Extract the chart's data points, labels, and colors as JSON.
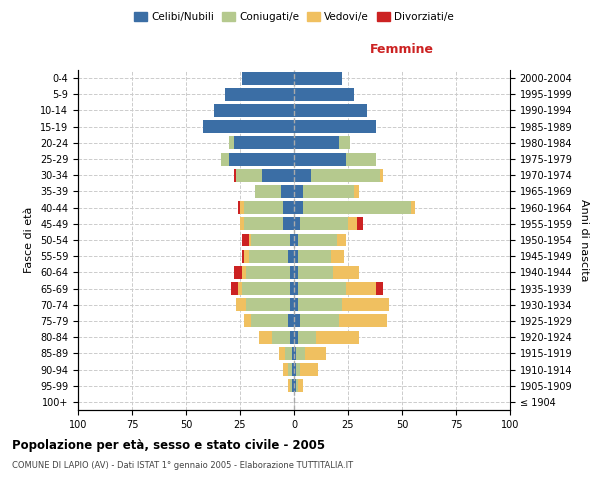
{
  "age_groups": [
    "100+",
    "95-99",
    "90-94",
    "85-89",
    "80-84",
    "75-79",
    "70-74",
    "65-69",
    "60-64",
    "55-59",
    "50-54",
    "45-49",
    "40-44",
    "35-39",
    "30-34",
    "25-29",
    "20-24",
    "15-19",
    "10-14",
    "5-9",
    "0-4"
  ],
  "birth_years": [
    "≤ 1904",
    "1905-1909",
    "1910-1914",
    "1915-1919",
    "1920-1924",
    "1925-1929",
    "1930-1934",
    "1935-1939",
    "1940-1944",
    "1945-1949",
    "1950-1954",
    "1955-1959",
    "1960-1964",
    "1965-1969",
    "1970-1974",
    "1975-1979",
    "1980-1984",
    "1985-1989",
    "1990-1994",
    "1995-1999",
    "2000-2004"
  ],
  "male": {
    "celibi": [
      0,
      1,
      1,
      1,
      2,
      3,
      2,
      2,
      2,
      3,
      2,
      5,
      5,
      6,
      15,
      30,
      28,
      42,
      37,
      32,
      24
    ],
    "coniugati": [
      0,
      1,
      2,
      3,
      8,
      17,
      20,
      22,
      20,
      18,
      18,
      18,
      18,
      12,
      12,
      4,
      2,
      0,
      0,
      0,
      0
    ],
    "vedovi": [
      0,
      1,
      2,
      3,
      6,
      3,
      5,
      2,
      2,
      2,
      1,
      2,
      2,
      0,
      0,
      0,
      0,
      0,
      0,
      0,
      0
    ],
    "divorziati": [
      0,
      0,
      0,
      0,
      0,
      0,
      0,
      3,
      4,
      1,
      3,
      0,
      1,
      0,
      1,
      0,
      0,
      0,
      0,
      0,
      0
    ]
  },
  "female": {
    "nubili": [
      0,
      1,
      1,
      1,
      2,
      3,
      2,
      2,
      2,
      2,
      2,
      3,
      4,
      4,
      8,
      24,
      21,
      38,
      34,
      28,
      22
    ],
    "coniugate": [
      0,
      1,
      2,
      4,
      8,
      18,
      20,
      22,
      16,
      15,
      18,
      22,
      50,
      24,
      32,
      14,
      5,
      0,
      0,
      0,
      0
    ],
    "vedove": [
      0,
      2,
      8,
      10,
      20,
      22,
      22,
      14,
      12,
      6,
      4,
      4,
      2,
      2,
      1,
      0,
      0,
      0,
      0,
      0,
      0
    ],
    "divorziate": [
      0,
      0,
      0,
      0,
      0,
      0,
      0,
      3,
      0,
      0,
      0,
      3,
      0,
      0,
      0,
      0,
      0,
      0,
      0,
      0,
      0
    ]
  },
  "colors": {
    "celibi": "#3b6ea5",
    "coniugati": "#b5c98e",
    "vedovi": "#f0c060",
    "divorziati": "#cc2222"
  },
  "title": "Popolazione per età, sesso e stato civile - 2005",
  "subtitle": "COMUNE DI LAPIO (AV) - Dati ISTAT 1° gennaio 2005 - Elaborazione TUTTITALIA.IT",
  "ylabel_left": "Fasce di età",
  "ylabel_right": "Anni di nascita",
  "xlabel_right": "Femmine",
  "xlim": 100,
  "background_color": "#ffffff",
  "grid_color": "#cccccc"
}
